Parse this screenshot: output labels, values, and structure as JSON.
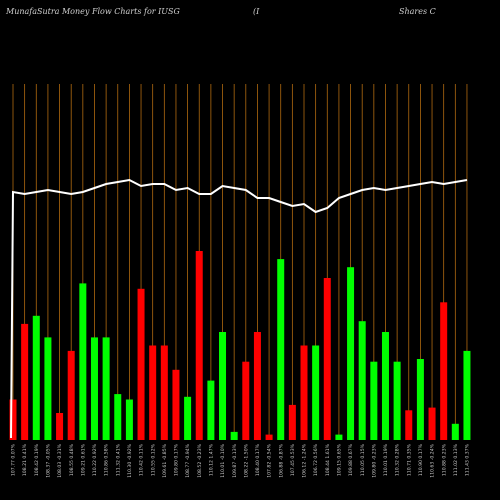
{
  "header": {
    "brand": "MunafaSutra  Money Flow  Charts for IUSG",
    "paren": "(I",
    "company": "Shares C"
  },
  "colors": {
    "background": "#000000",
    "up": "#00ff00",
    "down": "#ff0000",
    "gridline": "#b06a10",
    "price_line": "#ffffff",
    "label": "#cccccc"
  },
  "chart_data": {
    "type": "bar",
    "ylim": [
      0,
      100
    ],
    "price_ylim": [
      0,
      100
    ],
    "categories": [
      "107.77 0.07%",
      "108.21 0.41%",
      "108.42 0.19%",
      "108.37 -0.05%",
      "108.03 -0.31%",
      "108.55 0.48%",
      "109.21 0.61%",
      "110.22 0.92%",
      "110.86 0.58%",
      "111.32 0.41%",
      "110.30 -0.92%",
      "110.42 0.11%",
      "110.55 0.12%",
      "109.61 -0.85%",
      "109.80 0.17%",
      "108.77 -0.94%",
      "108.52 -0.23%",
      "110.12 1.47%",
      "110.01 -0.10%",
      "109.87 -0.13%",
      "108.22 -1.50%",
      "108.40 0.17%",
      "107.82 -0.54%",
      "106.88 -0.87%",
      "107.45 0.53%",
      "106.12 -1.24%",
      "106.72 0.56%",
      "108.44 1.61%",
      "109.15 0.65%",
      "109.88 0.67%",
      "110.05 0.15%",
      "109.80 -0.23%",
      "110.01 0.19%",
      "110.32 0.28%",
      "110.71 0.35%",
      "110.90 0.17%",
      "110.63 -0.24%",
      "110.88 0.23%",
      "111.02 0.13%",
      "111.43 0.37%"
    ],
    "values": [
      15,
      43,
      46,
      38,
      10,
      33,
      58,
      38,
      38,
      17,
      15,
      56,
      35,
      35,
      26,
      16,
      70,
      22,
      40,
      3,
      29,
      40,
      2,
      67,
      13,
      35,
      35,
      60,
      2,
      64,
      44,
      29,
      40,
      29,
      11,
      30,
      12,
      51,
      6,
      33
    ],
    "directions": [
      "down",
      "down",
      "up",
      "up",
      "down",
      "down",
      "up",
      "up",
      "up",
      "up",
      "up",
      "down",
      "down",
      "down",
      "down",
      "up",
      "down",
      "up",
      "up",
      "up",
      "down",
      "down",
      "down",
      "up",
      "down",
      "down",
      "up",
      "down",
      "up",
      "up",
      "up",
      "up",
      "up",
      "up",
      "down",
      "up",
      "down",
      "down",
      "up",
      "up"
    ],
    "price": [
      92,
      91,
      92,
      93,
      92,
      91,
      92,
      94,
      96,
      97,
      98,
      95,
      96,
      96,
      93,
      94,
      91,
      91,
      95,
      94,
      93,
      89,
      89,
      87,
      85,
      86,
      82,
      84,
      89,
      91,
      93,
      94,
      93,
      94,
      95,
      96,
      97,
      96,
      97,
      98
    ],
    "price_start": 0,
    "title": "",
    "xlabel": "",
    "ylabel": "",
    "grid": true,
    "legend": "none"
  }
}
